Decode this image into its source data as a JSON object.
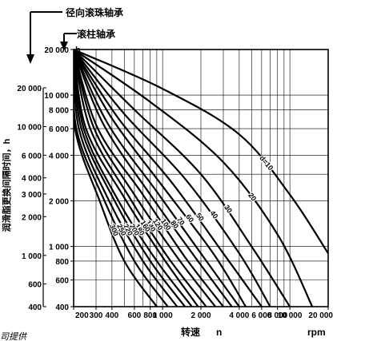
{
  "chart_data": {
    "type": "line",
    "header_labels": [
      "径向滚珠轴承",
      "滚柱轴承"
    ],
    "ylabel": "润滑脂更换间隔时间，h",
    "xlabel": "转速",
    "xlabel_var": "n",
    "x_unit": "rpm",
    "y_unit_mark": "h",
    "footer_fragment": "司提供",
    "x_scale": "log",
    "y_scale": "log",
    "xlim": [
      200,
      20000
    ],
    "ylim_inner": [
      400,
      20000
    ],
    "ylim_outer": [
      400,
      20000
    ],
    "x_ticks": [
      200,
      300,
      400,
      600,
      800,
      1000,
      2000,
      4000,
      6000,
      8000,
      10000,
      20000
    ],
    "x_tick_labels": [
      "200",
      "300",
      "400",
      "600",
      "800",
      "1 000",
      "2 000",
      "4 000",
      "6 000",
      "8 000",
      "10 000",
      "20 000"
    ],
    "x_grid": [
      200,
      300,
      400,
      500,
      600,
      700,
      800,
      900,
      1000,
      2000,
      3000,
      4000,
      5000,
      6000,
      7000,
      8000,
      9000,
      10000,
      20000
    ],
    "y_inner_ticks": [
      20000,
      10000,
      8000,
      6000,
      4000,
      2000,
      1000,
      800,
      600,
      400
    ],
    "y_inner_labels": [
      "20 000",
      "10 000",
      "8 000",
      "6 000",
      "4 000",
      "2 000",
      "1 000",
      "800",
      "600",
      "400"
    ],
    "y_outer_ticks": [
      20000,
      10000,
      6000,
      4000,
      3000,
      2000,
      1000,
      600,
      400
    ],
    "y_outer_labels": [
      "20 000",
      "10 000",
      "6 000",
      "4 000",
      "3 000",
      "2 000",
      "1 000",
      "600",
      "400"
    ],
    "series": [
      {
        "name": "10",
        "x": [
          200,
          1000,
          4000,
          10000,
          20000
        ],
        "y": [
          20000,
          11000,
          5500,
          2200,
          900
        ]
      },
      {
        "name": "20",
        "x": [
          200,
          800,
          3000,
          8000,
          15000
        ],
        "y": [
          20000,
          9000,
          3600,
          1200,
          400
        ]
      },
      {
        "name": "30",
        "x": [
          200,
          600,
          2000,
          5000,
          10000
        ],
        "y": [
          20000,
          8000,
          3000,
          1000,
          400
        ]
      },
      {
        "name": "40",
        "x": [
          200,
          500,
          1500,
          4000,
          7000
        ],
        "y": [
          20000,
          7500,
          2800,
          900,
          400
        ]
      },
      {
        "name": "50",
        "x": [
          200,
          450,
          1200,
          3000,
          6000
        ],
        "y": [
          20000,
          7000,
          2600,
          900,
          400
        ]
      },
      {
        "name": "60",
        "x": [
          200,
          400,
          1000,
          2500,
          4500
        ],
        "y": [
          20000,
          7000,
          2500,
          900,
          400
        ]
      },
      {
        "name": "70",
        "x": [
          200,
          370,
          900,
          2000,
          4000
        ],
        "y": [
          20000,
          6500,
          2300,
          900,
          400
        ]
      },
      {
        "name": "80",
        "x": [
          200,
          340,
          800,
          1800,
          3500
        ],
        "y": [
          20000,
          6500,
          2200,
          850,
          400
        ]
      },
      {
        "name": "100",
        "x": [
          200,
          310,
          700,
          1500,
          3000
        ],
        "y": [
          20000,
          6000,
          2200,
          850,
          400
        ]
      },
      {
        "name": "120",
        "x": [
          200,
          290,
          600,
          1300,
          2600
        ],
        "y": [
          20000,
          6000,
          2200,
          850,
          400
        ]
      },
      {
        "name": "140",
        "x": [
          200,
          270,
          550,
          1100,
          2200
        ],
        "y": [
          20000,
          6000,
          2100,
          850,
          400
        ]
      },
      {
        "name": "160",
        "x": [
          200,
          250,
          500,
          1000,
          1900
        ],
        "y": [
          20000,
          6000,
          2100,
          850,
          400
        ]
      },
      {
        "name": "180",
        "x": [
          200,
          240,
          450,
          900,
          1700
        ],
        "y": [
          20000,
          6000,
          2000,
          800,
          400
        ]
      },
      {
        "name": "200",
        "x": [
          200,
          230,
          420,
          800,
          1500
        ],
        "y": [
          20000,
          6000,
          2000,
          800,
          400
        ]
      },
      {
        "name": "220",
        "x": [
          200,
          220,
          380,
          700,
          1300
        ],
        "y": [
          20000,
          6000,
          2000,
          800,
          400
        ]
      },
      {
        "name": "250",
        "x": [
          200,
          210,
          350,
          600,
          1100
        ],
        "y": [
          20000,
          6000,
          2000,
          800,
          400
        ]
      },
      {
        "name": "300",
        "x": [
          200,
          205,
          320,
          500,
          900
        ],
        "y": [
          20000,
          6000,
          2000,
          800,
          400
        ]
      }
    ],
    "curve_label_prefix": "d=",
    "grid": true
  }
}
